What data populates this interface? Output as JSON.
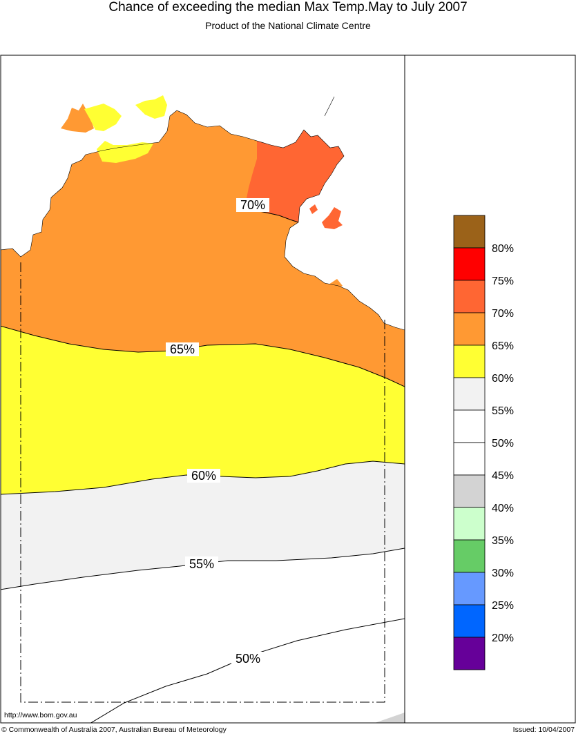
{
  "title": "Chance of exceeding the median Max Temp.May to July 2007",
  "subtitle": "Product of the National Climate Centre",
  "url": "http://www.bom.gov.au",
  "copyright": "© Commonwealth of Australia 2007, Australian Bureau of Meteorology",
  "issued": "Issued: 10/04/2007",
  "contour_labels": [
    "70%",
    "65%",
    "60%",
    "55%",
    "50%"
  ],
  "legend": {
    "labels": [
      "80%",
      "75%",
      "70%",
      "65%",
      "60%",
      "55%",
      "50%",
      "45%",
      "40%",
      "35%",
      "30%",
      "25%",
      "20%"
    ],
    "colors": [
      "#9b6219",
      "#ff0000",
      "#ff6633",
      "#ff9933",
      "#ffff33",
      "#f2f2f2",
      "#ffffff",
      "#ffffff",
      "#d3d3d3",
      "#ccffcc",
      "#66cc66",
      "#6699ff",
      "#0066ff",
      "#660099"
    ]
  },
  "colors": {
    "p70": "#ff6633",
    "p65": "#ff9933",
    "p60": "#ffff33",
    "p55": "#f2f2f2",
    "p50": "#ffffff",
    "p45": "#d3d3d3"
  }
}
